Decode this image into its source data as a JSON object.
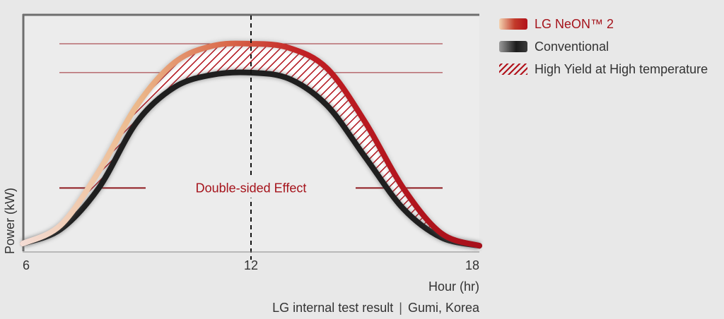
{
  "chart_data": {
    "type": "line",
    "ylabel": "Power (kW)",
    "xlabel": "Hour (hr)",
    "xlim": [
      6,
      18
    ],
    "xticks": [
      6,
      12,
      18
    ],
    "tick_labels": [
      "6",
      "12",
      "18"
    ],
    "ylim": [
      0,
      1
    ],
    "x": [
      6,
      7,
      8,
      9,
      10,
      11,
      12,
      13,
      14,
      15,
      16,
      17,
      18
    ],
    "series": [
      {
        "name": "LG NeON™ 2",
        "values": [
          0.03,
          0.12,
          0.38,
          0.7,
          0.91,
          0.99,
          1.0,
          0.98,
          0.88,
          0.62,
          0.3,
          0.08,
          0.02
        ]
      },
      {
        "name": "Conventional",
        "values": [
          0.03,
          0.1,
          0.3,
          0.62,
          0.79,
          0.85,
          0.86,
          0.83,
          0.7,
          0.45,
          0.2,
          0.06,
          0.02
        ]
      }
    ],
    "hatch_legend": "High Yield at High temperature",
    "annotation": "Double-sided Effect",
    "reference_lines": [
      1.0,
      0.86,
      0.3
    ],
    "vline": 12,
    "legend_position": "right",
    "grid": false
  },
  "footnote": {
    "left": "LG internal test result",
    "separator": "|",
    "right": "Gumi, Korea"
  }
}
